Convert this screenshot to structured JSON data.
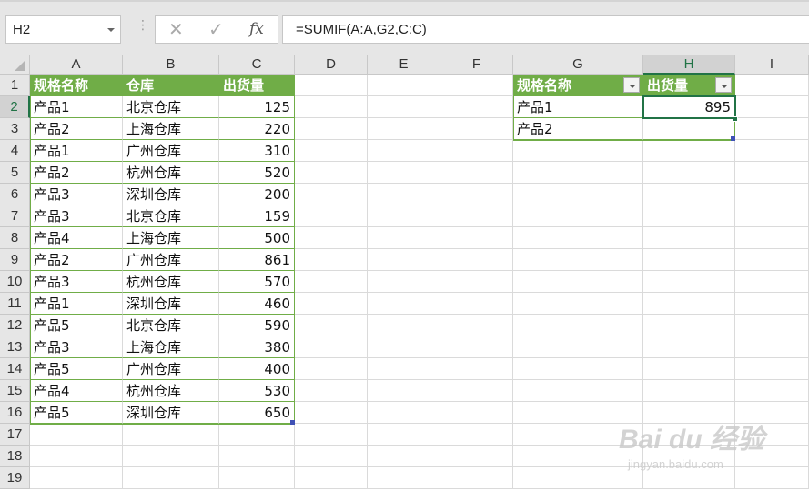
{
  "name_box": "H2",
  "formula_bar": {
    "cancel": "✕",
    "enter": "✓",
    "fx": "fx",
    "formula": "=SUMIF(A:A,G2,C:C)"
  },
  "columns": [
    "A",
    "B",
    "C",
    "D",
    "E",
    "F",
    "G",
    "H",
    "I"
  ],
  "rows": [
    "1",
    "2",
    "3",
    "4",
    "5",
    "6",
    "7",
    "8",
    "9",
    "10",
    "11",
    "12",
    "13",
    "14",
    "15",
    "16",
    "17",
    "18",
    "19"
  ],
  "selected_cell": "H2",
  "table1": {
    "headers": [
      "规格名称",
      "仓库",
      "出货量"
    ],
    "rows": [
      [
        "产品1",
        "北京仓库",
        "125"
      ],
      [
        "产品2",
        "上海仓库",
        "220"
      ],
      [
        "产品1",
        "广州仓库",
        "310"
      ],
      [
        "产品2",
        "杭州仓库",
        "520"
      ],
      [
        "产品3",
        "深圳仓库",
        "200"
      ],
      [
        "产品3",
        "北京仓库",
        "159"
      ],
      [
        "产品4",
        "上海仓库",
        "500"
      ],
      [
        "产品2",
        "广州仓库",
        "861"
      ],
      [
        "产品3",
        "杭州仓库",
        "570"
      ],
      [
        "产品1",
        "深圳仓库",
        "460"
      ],
      [
        "产品5",
        "北京仓库",
        "590"
      ],
      [
        "产品3",
        "上海仓库",
        "380"
      ],
      [
        "产品5",
        "广州仓库",
        "400"
      ],
      [
        "产品4",
        "杭州仓库",
        "530"
      ],
      [
        "产品5",
        "深圳仓库",
        "650"
      ]
    ]
  },
  "table2": {
    "headers": [
      "规格名称",
      "出货量"
    ],
    "rows": [
      [
        "产品1",
        "895"
      ],
      [
        "产品2",
        ""
      ]
    ]
  },
  "watermark": {
    "logo": "Bai du 经验",
    "url": "jingyan.baidu.com"
  },
  "colors": {
    "header_green": "#70ad47",
    "selection": "#217346"
  }
}
